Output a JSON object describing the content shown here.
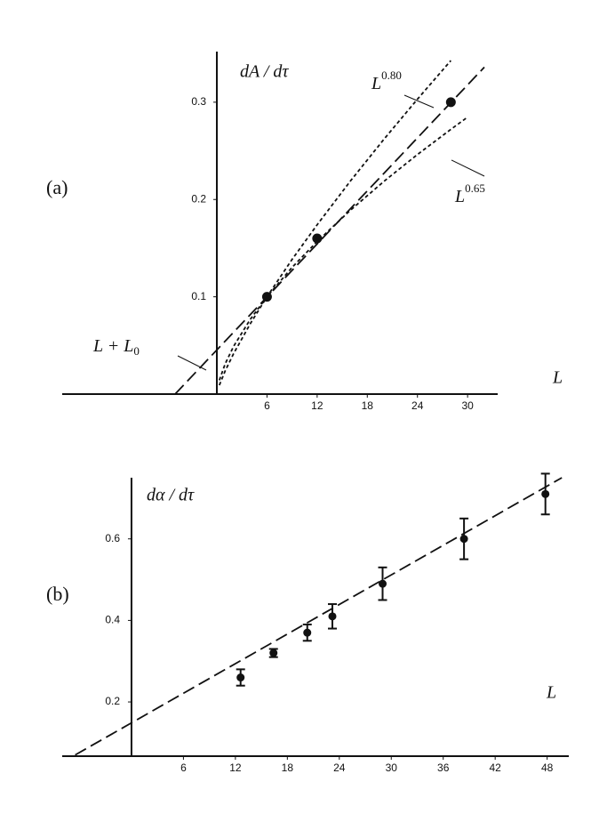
{
  "charts": [
    {
      "type": "scatter",
      "panel": "(a)",
      "y_label": "dA / dτ",
      "x_label": "L",
      "xlim": [
        -18.5,
        33.6
      ],
      "ylim": [
        0,
        0.352
      ],
      "xticks": [
        6,
        12,
        18,
        24,
        30
      ],
      "yticks": [
        0.1,
        0.2,
        0.3
      ],
      "points": {
        "x": [
          6,
          12,
          28
        ],
        "values": [
          0.1,
          0.16,
          0.3
        ]
      },
      "lines": [
        {
          "label": {
            "base": "L + L",
            "sub": "0"
          },
          "dash": "14 6",
          "x": [
            -5,
            32
          ],
          "values": [
            0,
            0.336
          ]
        },
        {
          "label": {
            "base": "L",
            "sup": "0.80"
          },
          "dash": "4 3",
          "x": [
            0.3,
            1,
            2,
            4,
            6,
            9,
            12,
            16,
            20,
            24,
            28
          ],
          "values": [
            0.0091,
            0.0239,
            0.0415,
            0.0723,
            0.1,
            0.1383,
            0.1741,
            0.2192,
            0.262,
            0.3031,
            0.3428
          ]
        },
        {
          "label": {
            "base": "L",
            "sup": "0.65"
          },
          "dash": "4 3",
          "x": [
            0.3,
            1,
            2,
            4,
            6,
            9,
            12,
            16,
            20,
            24,
            28,
            30
          ],
          "values": [
            0.0143,
            0.0312,
            0.049,
            0.0768,
            0.1,
            0.1302,
            0.1569,
            0.1892,
            0.2187,
            0.2462,
            0.2721,
            0.2846
          ]
        }
      ]
    },
    {
      "type": "scatter",
      "panel": "(b)",
      "y_label": "dα / dτ",
      "x_label": "L",
      "xlim": [
        -8,
        50.5
      ],
      "ylim": [
        0.067,
        0.75
      ],
      "xticks": [
        6,
        12,
        18,
        24,
        30,
        36,
        42,
        48
      ],
      "yticks": [
        0.2,
        0.4,
        0.6
      ],
      "points": {
        "x": [
          12.6,
          16.4,
          20.3,
          23.2,
          29,
          38.4,
          47.8
        ],
        "values": [
          0.26,
          0.32,
          0.37,
          0.41,
          0.49,
          0.6,
          0.71
        ],
        "errors": [
          0.02,
          0.01,
          0.02,
          0.03,
          0.04,
          0.05,
          0.05
        ]
      },
      "lines": [
        {
          "dash": "14 6",
          "x": [
            -6.5,
            49.7
          ],
          "values": [
            0.07,
            0.75
          ]
        }
      ]
    }
  ]
}
